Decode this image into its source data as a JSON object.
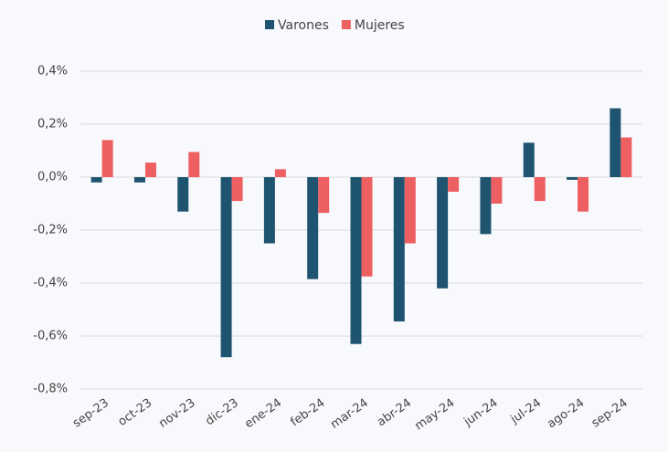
{
  "chart_data": {
    "type": "bar",
    "categories": [
      "sep-23",
      "oct-23",
      "nov-23",
      "dic-23",
      "ene-24",
      "feb-24",
      "mar-24",
      "abr-24",
      "may-24",
      "jun-24",
      "jul-24",
      "ago-24",
      "sep-24"
    ],
    "series": [
      {
        "name": "Varones",
        "color": "#1f5470",
        "values": [
          -0.02,
          -0.02,
          -0.13,
          -0.68,
          -0.25,
          -0.385,
          -0.63,
          -0.545,
          -0.42,
          -0.215,
          0.13,
          -0.01,
          0.26
        ]
      },
      {
        "name": "Mujeres",
        "color": "#ee5f62",
        "values": [
          0.14,
          0.055,
          0.095,
          -0.09,
          0.03,
          -0.135,
          -0.375,
          -0.25,
          -0.055,
          -0.1,
          -0.09,
          -0.13,
          0.15
        ]
      }
    ],
    "ylim": [
      -0.8,
      0.4
    ],
    "yticks": [
      {
        "value": -0.8,
        "label": "-0,8%"
      },
      {
        "value": -0.6,
        "label": "-0,6%"
      },
      {
        "value": -0.4,
        "label": "-0,4%"
      },
      {
        "value": -0.2,
        "label": "-0,2%"
      },
      {
        "value": 0,
        "label": "0,0%"
      },
      {
        "value": 0.2,
        "label": "0,2%"
      },
      {
        "value": 0.4,
        "label": "0,4%"
      }
    ],
    "grid": true,
    "legend": "top"
  }
}
